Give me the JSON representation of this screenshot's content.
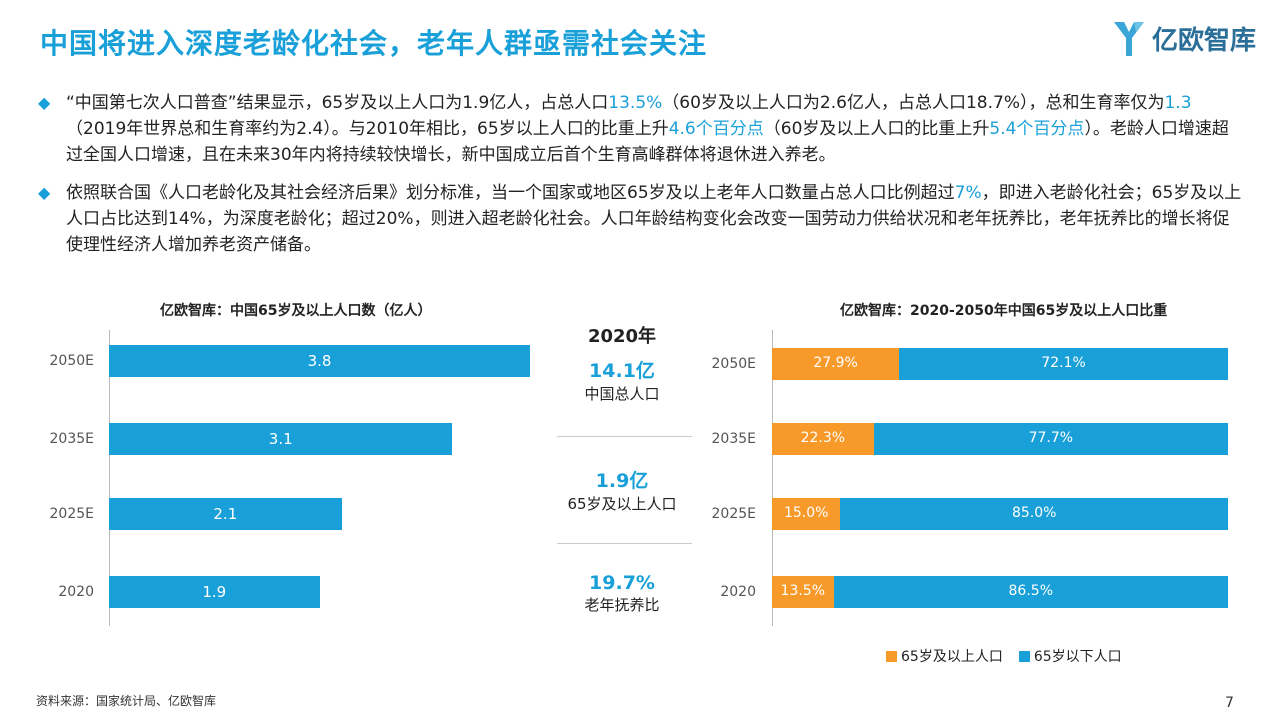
{
  "title": "中国将进入深度老龄化社会，老年人群亟需社会关注",
  "logo_text": "亿欧智库",
  "bullet_icon": "diamond-icon",
  "para1": {
    "t1": "“中国第七次人口普查”结果显示，65岁及以上人口为1.9亿人，占总人口",
    "h1": "13.5%",
    "t2": "（60岁及以上人口为2.6亿人，占总人口18.7%），总和生育率仅为",
    "h2": "1.3",
    "t3": "（2019年世界总和生育率约为2.4）。与2010年相比，65岁以上人口的比重上升",
    "h3": "4.6个百分点",
    "t4": "（60岁及以上人口的比重上升",
    "h4": "5.4个百分点",
    "t5": "）。老龄人口增速超过全国人口增速，且在未来30年内将持续较快增长，新中国成立后首个生育高峰群体将退休进入养老。"
  },
  "para2": {
    "t1": "依照联合国《人口老龄化及其社会经济后果》划分标准，当一个国家或地区65岁及以上老年人口数量占总人口比例超过",
    "h1": "7%",
    "t2": "，即进入老龄化社会；65岁及以上人口占比达到14%，为深度老龄化；超过20%，则进入超老龄化社会。人口年龄结构变化会改变一国劳动力供给状况和老年抚养比，老年抚养比的增长将促使理性经济人增加养老资产储备。"
  },
  "chart_data": [
    {
      "type": "bar",
      "orientation": "horizontal",
      "title": "亿欧智库：中国65岁及以上人口数（亿人）",
      "categories": [
        "2050E",
        "2035E",
        "2025E",
        "2020"
      ],
      "values": [
        3.8,
        3.1,
        2.1,
        1.9
      ],
      "value_labels": [
        "3.8",
        "3.1",
        "2.1",
        "1.9"
      ],
      "xlim": [
        0,
        3.8
      ],
      "color": "#1aa0d8"
    },
    {
      "type": "bar",
      "orientation": "horizontal",
      "stacked": "percent",
      "title": "亿欧智库：2020-2050年中国65岁及以上人口比重",
      "categories": [
        "2050E",
        "2035E",
        "2025E",
        "2020"
      ],
      "series": [
        {
          "name": "65岁及以上人口",
          "values": [
            27.9,
            22.3,
            15.0,
            13.5
          ],
          "labels": [
            "27.9%",
            "22.3%",
            "15.0%",
            "13.5%"
          ],
          "color": "#f79a2a"
        },
        {
          "name": "65岁以下人口",
          "values": [
            72.1,
            77.7,
            85.0,
            86.5
          ],
          "labels": [
            "72.1%",
            "77.7%",
            "85.0%",
            "86.5%"
          ],
          "color": "#1aa0d8"
        }
      ],
      "xlim": [
        0,
        100
      ],
      "legend": "bottom-right"
    }
  ],
  "middle": {
    "year": "2020年",
    "stats": [
      {
        "value": "14.1亿",
        "label": "中国总人口"
      },
      {
        "value": "1.9亿",
        "label": "65岁及以上人口"
      },
      {
        "value": "19.7%",
        "label": "老年抚养比"
      }
    ]
  },
  "source": "资料来源：国家统计局、亿欧智库",
  "page_number": "7"
}
